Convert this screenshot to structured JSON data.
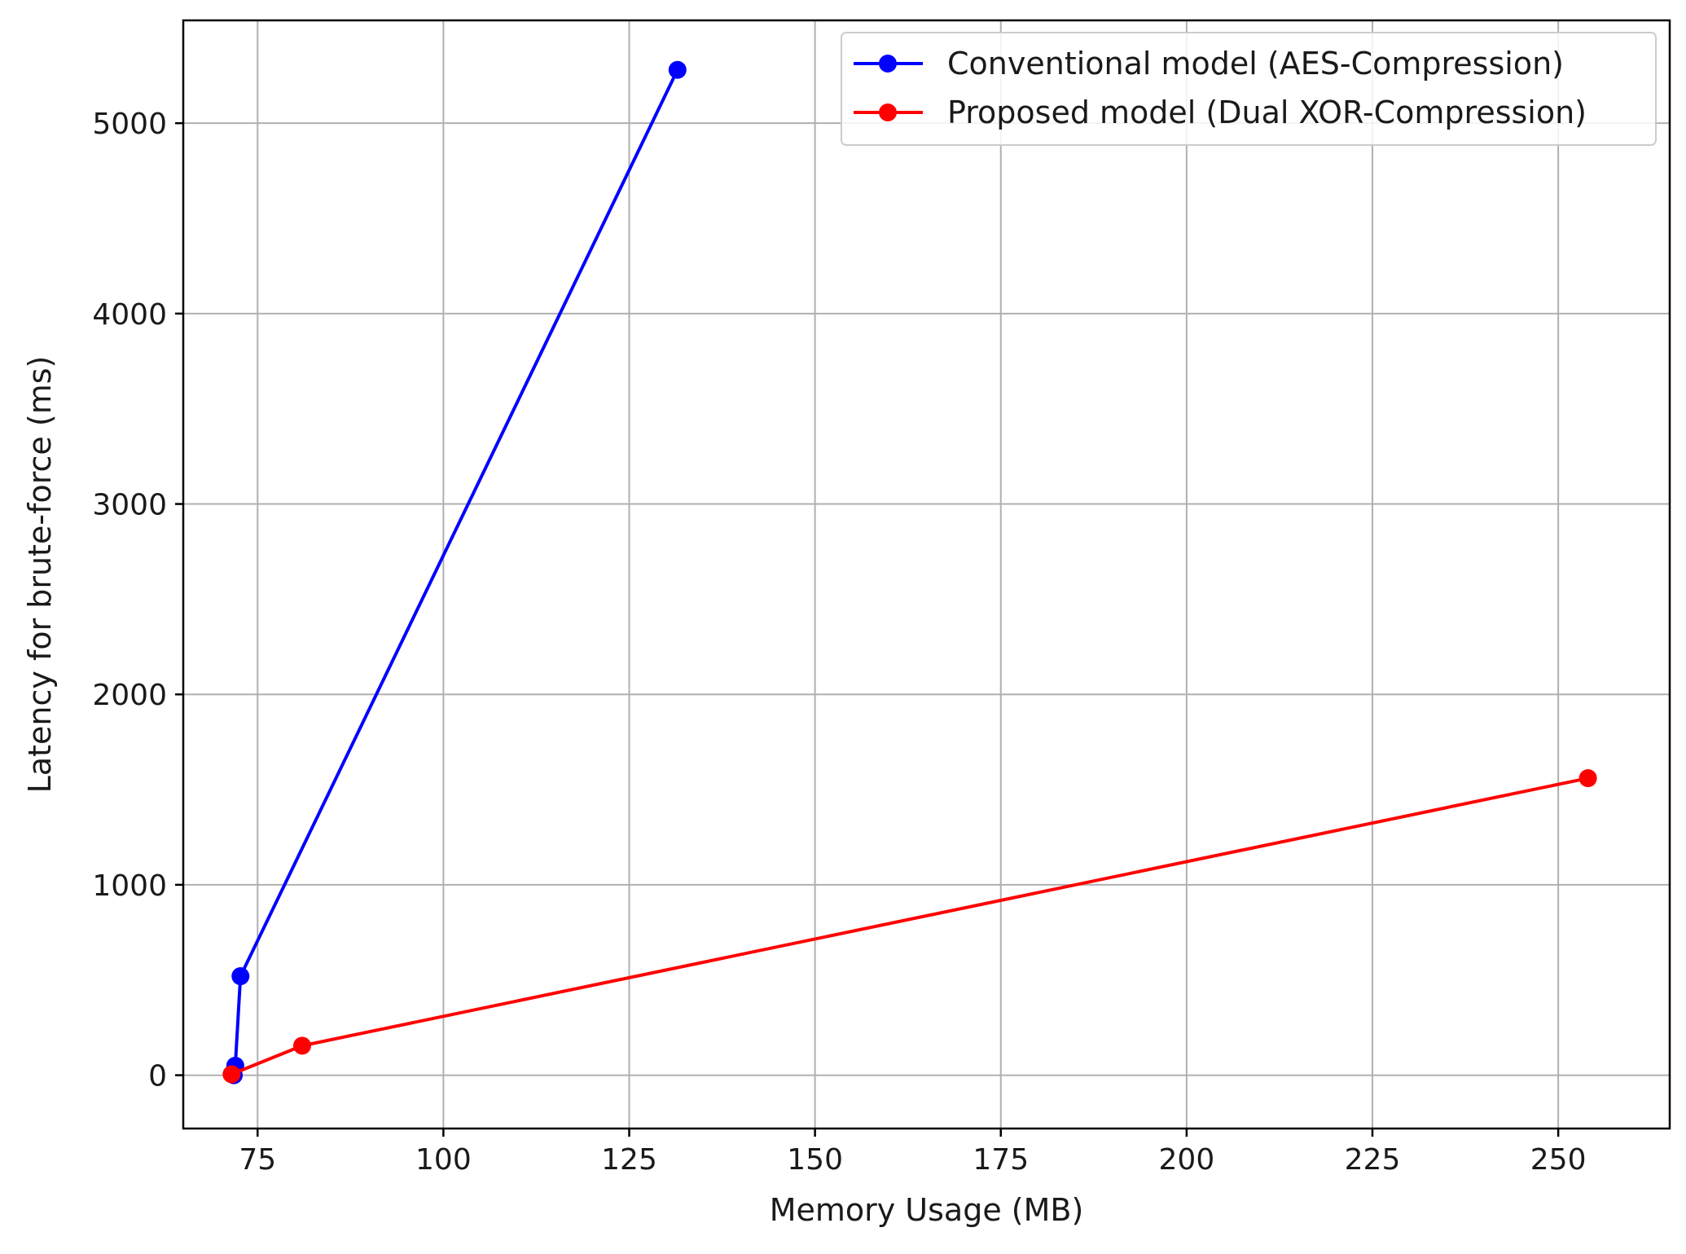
{
  "chart_data": {
    "type": "line",
    "title": "",
    "xlabel": "Memory Usage (MB)",
    "ylabel": "Latency for brute-force (ms)",
    "xlim": [
      65,
      265
    ],
    "ylim": [
      -280,
      5540
    ],
    "xticks": [
      75,
      100,
      125,
      150,
      175,
      200,
      225,
      250
    ],
    "yticks": [
      0,
      1000,
      2000,
      3000,
      4000,
      5000
    ],
    "grid": true,
    "legend_position": "top-right",
    "series": [
      {
        "name": "Conventional model (AES-Compression)",
        "color": "#0000ff",
        "x": [
          71.8,
          72.0,
          72.7,
          131.5
        ],
        "y": [
          0,
          50,
          520,
          5280
        ]
      },
      {
        "name": "Proposed model (Dual XOR-Compression)",
        "color": "#ff0000",
        "x": [
          71.5,
          81.0,
          254.0
        ],
        "y": [
          5,
          155,
          1560
        ]
      }
    ]
  }
}
